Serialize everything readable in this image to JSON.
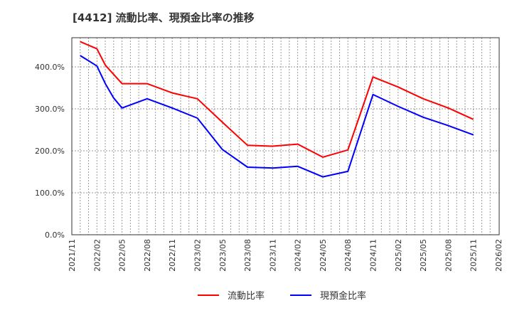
{
  "title": "[4412]  流動比率、現預金比率の推移",
  "chart_data": {
    "type": "line",
    "title": "[4412]  流動比率、現預金比率の推移",
    "xlabel": "",
    "ylabel": "",
    "ylim": [
      0,
      470
    ],
    "yticks": [
      "0.0%",
      "100.0%",
      "200.0%",
      "300.0%",
      "400.0%"
    ],
    "xticks": [
      "2021/11",
      "2022/02",
      "2022/05",
      "2022/08",
      "2022/11",
      "2023/02",
      "2023/05",
      "2023/08",
      "2023/11",
      "2024/02",
      "2024/05",
      "2024/08",
      "2024/11",
      "2025/02",
      "2025/05",
      "2025/08",
      "2025/11",
      "2026/02"
    ],
    "x": [
      "2021/12",
      "2022/02",
      "2022/03",
      "2022/04",
      "2022/05",
      "2022/08",
      "2022/11",
      "2023/02",
      "2023/05",
      "2023/08",
      "2023/11",
      "2024/02",
      "2024/05",
      "2024/08",
      "2024/11",
      "2025/02",
      "2025/05",
      "2025/08",
      "2025/11"
    ],
    "series": [
      {
        "name": "流動比率",
        "color": "#ff0000",
        "values": [
          460,
          443,
          404,
          382,
          360,
          360,
          338,
          324,
          268,
          213,
          211,
          216,
          185,
          202,
          376,
          352,
          324,
          302,
          275
        ]
      },
      {
        "name": "現預金比率",
        "color": "#0000ff",
        "values": [
          427,
          402,
          360,
          326,
          302,
          324,
          302,
          278,
          203,
          161,
          159,
          163,
          138,
          151,
          334,
          306,
          280,
          260,
          238
        ]
      }
    ],
    "grid": true,
    "legend_position": "bottom"
  },
  "legend": {
    "items": [
      {
        "label": "流動比率",
        "color": "#ff0000"
      },
      {
        "label": "現預金比率",
        "color": "#0000ff"
      }
    ]
  }
}
